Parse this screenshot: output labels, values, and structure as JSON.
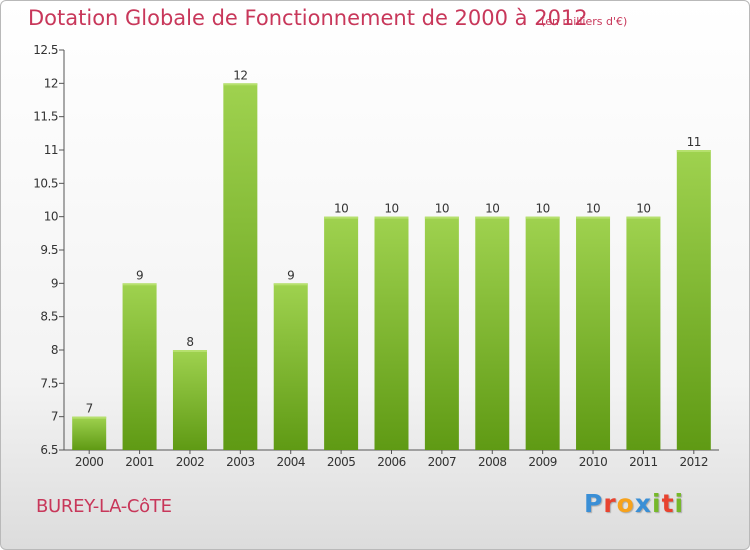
{
  "header": {
    "title": "Dotation Globale de Fonctionnement de 2000 à 2012",
    "subtitle": "(en milliers d'€)"
  },
  "footer": {
    "commune": "BUREY-LA-CôTE",
    "logo": {
      "text": "Proxiti",
      "letters": [
        {
          "char": "P",
          "color": "#3a8fd6"
        },
        {
          "char": "r",
          "color": "#e8432f"
        },
        {
          "char": "o",
          "color": "#f7a21c"
        },
        {
          "char": "x",
          "color": "#3a8fd6"
        },
        {
          "char": "i",
          "color": "#76b82a"
        },
        {
          "char": "t",
          "color": "#e8432f"
        },
        {
          "char": "i",
          "color": "#76b82a"
        }
      ]
    }
  },
  "colors": {
    "bar_light": "#9fd24f",
    "bar_dark": "#5f9a14",
    "text": "#333333",
    "accent": "#c8375a"
  },
  "chart_data": {
    "type": "bar",
    "title": "Dotation Globale de Fonctionnement de 2000 à 2012",
    "categories": [
      "2000",
      "2001",
      "2002",
      "2003",
      "2004",
      "2005",
      "2006",
      "2007",
      "2008",
      "2009",
      "2010",
      "2011",
      "2012"
    ],
    "values": [
      7,
      9,
      8,
      12,
      9,
      10,
      10,
      10,
      10,
      10,
      10,
      10,
      11
    ],
    "ylim": [
      6.5,
      12.5
    ],
    "yticks": [
      "6.5",
      "7",
      "7.5",
      "8",
      "8.5",
      "9",
      "9.5",
      "10",
      "10.5",
      "11",
      "11.5",
      "12",
      "12.5"
    ],
    "grid": false,
    "xlabel": "",
    "ylabel": ""
  }
}
